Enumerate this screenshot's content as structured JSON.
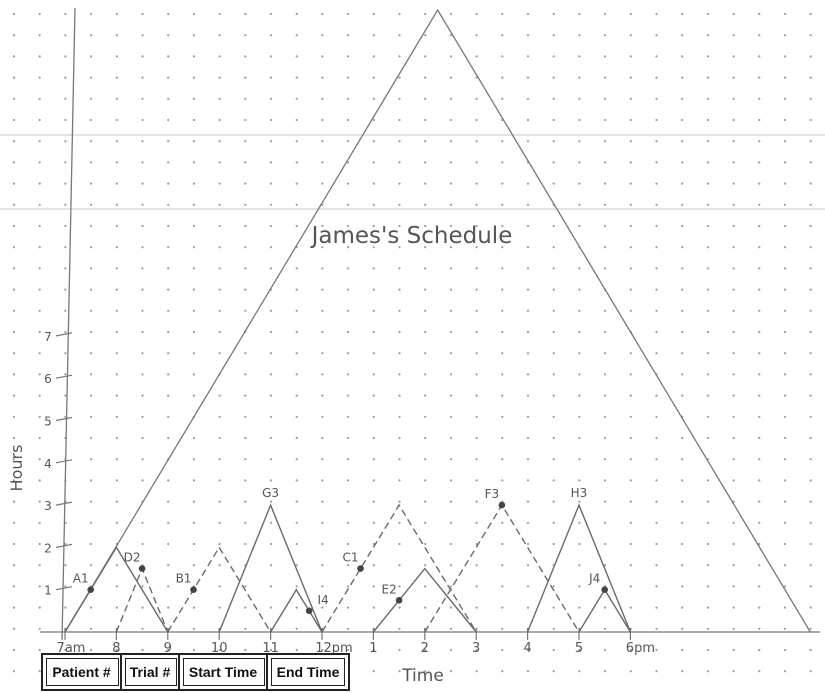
{
  "title": "James's Schedule",
  "x_axis_label": "Time",
  "y_axis_label": "Hours",
  "x_tick_labels": [
    "7am",
    "8",
    "9",
    "10",
    "11",
    "12pm",
    "1",
    "2",
    "3",
    "4",
    "5",
    "6pm"
  ],
  "y_tick_labels": [
    "1",
    "2",
    "3",
    "4",
    "5",
    "6",
    "7"
  ],
  "table": {
    "headers": [
      "Patient #",
      "Trial #",
      "Start Time",
      "End Time"
    ]
  },
  "big_triangle": {
    "start": 0,
    "end": 14.5,
    "peak_x": 7.25,
    "peak_y": 14.5
  },
  "triangles": [
    {
      "label": "A1",
      "start": 0,
      "end": 2,
      "height": 2,
      "style": "solid",
      "mark": "left"
    },
    {
      "label": "D2",
      "start": 1,
      "end": 2,
      "height": 1.5,
      "style": "dashed",
      "mark": "peak"
    },
    {
      "label": "B1",
      "start": 2,
      "end": 4,
      "height": 2,
      "style": "dashed",
      "mark": "left"
    },
    {
      "label": "G3",
      "start": 3,
      "end": 5,
      "height": 3,
      "style": "solid",
      "mark": "none"
    },
    {
      "label": "I4",
      "start": 4,
      "end": 5,
      "height": 1,
      "style": "solid",
      "mark": "right"
    },
    {
      "label": "C1",
      "start": 5,
      "end": 8,
      "height": 3,
      "style": "dashed",
      "mark": "left"
    },
    {
      "label": "E2",
      "start": 6,
      "end": 8,
      "height": 1.5,
      "style": "solid",
      "mark": "left"
    },
    {
      "label": "F3",
      "start": 7,
      "end": 10,
      "height": 3,
      "style": "dashed",
      "mark": "peak"
    },
    {
      "label": "H3",
      "start": 9,
      "end": 11,
      "height": 3,
      "style": "solid",
      "mark": "none"
    },
    {
      "label": "J4",
      "start": 10,
      "end": 11,
      "height": 1,
      "style": "solid",
      "mark": "peak"
    }
  ]
}
